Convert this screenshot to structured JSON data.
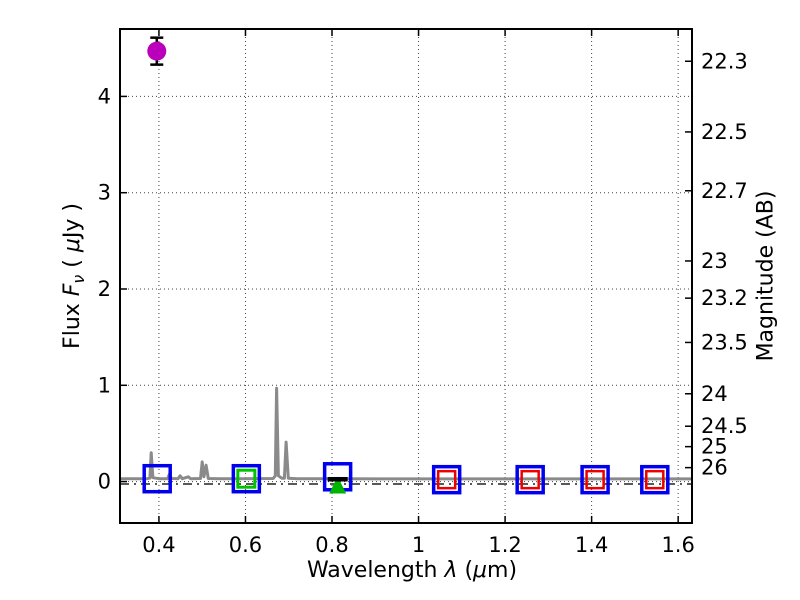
{
  "chart_data": {
    "type": "scatter",
    "description": "SED plot: gray model spectrum near zero flux with emission lines, photometric points (magenta detection at top-left, open blue squares with nested green/red model squares, green upper-limit triangle with black cap), dual y-axes (flux left, AB magnitude right)",
    "xlabel": {
      "word": "Wavelength ",
      "symbol": "λ ",
      "open": "(",
      "mu": "μ",
      "close": "m)"
    },
    "ylabel_left": {
      "word": "Flux ",
      "symbol": "F",
      "sub": "ν",
      "open": " ( ",
      "mu": "μ",
      "close": "Jy )"
    },
    "ylabel_right": {
      "text": "Magnitude (AB)"
    },
    "xlim": [
      0.31,
      1.632
    ],
    "ylim": [
      -0.43,
      4.7
    ],
    "grid": true,
    "background": "#ffffff",
    "spine_color": "#000000",
    "grid_color": "#444444",
    "zero_line": {
      "style": "dash-dot",
      "color": "#222222",
      "flux": -0.025
    },
    "x_ticks": [
      {
        "label": "0.4",
        "value": 0.4
      },
      {
        "label": "0.6",
        "value": 0.6
      },
      {
        "label": "0.8",
        "value": 0.8
      },
      {
        "label": "1",
        "value": 1.0
      },
      {
        "label": "1.2",
        "value": 1.2
      },
      {
        "label": "1.4",
        "value": 1.4
      },
      {
        "label": "1.6",
        "value": 1.6
      }
    ],
    "y_ticks_left": [
      {
        "label": "0",
        "value": 0
      },
      {
        "label": "1",
        "value": 1
      },
      {
        "label": "2",
        "value": 2
      },
      {
        "label": "3",
        "value": 3
      },
      {
        "label": "4",
        "value": 4
      }
    ],
    "y_ticks_right": [
      {
        "label": "22.3",
        "flux": 4.365
      },
      {
        "label": "22.5",
        "flux": 3.631
      },
      {
        "label": "22.7",
        "flux": 3.02
      },
      {
        "label": "23",
        "flux": 2.291
      },
      {
        "label": "23.2",
        "flux": 1.905
      },
      {
        "label": "23.5",
        "flux": 1.445
      },
      {
        "label": "24",
        "flux": 0.912
      },
      {
        "label": "24.5",
        "flux": 0.575
      },
      {
        "label": "25",
        "flux": 0.363
      },
      {
        "label": "26",
        "flux": 0.145
      }
    ],
    "spectrum": {
      "name": "model-spectrum",
      "color": "#8a8a8a",
      "width": 3,
      "points": [
        [
          0.31,
          0.03
        ],
        [
          0.372,
          0.03
        ],
        [
          0.379,
          0.035
        ],
        [
          0.382,
          0.3
        ],
        [
          0.386,
          0.04
        ],
        [
          0.4,
          0.03
        ],
        [
          0.42,
          0.03
        ],
        [
          0.424,
          0.075
        ],
        [
          0.429,
          0.032
        ],
        [
          0.444,
          0.03
        ],
        [
          0.449,
          0.06
        ],
        [
          0.454,
          0.03
        ],
        [
          0.468,
          0.05
        ],
        [
          0.473,
          0.03
        ],
        [
          0.496,
          0.032
        ],
        [
          0.5,
          0.205
        ],
        [
          0.504,
          0.05
        ],
        [
          0.509,
          0.17
        ],
        [
          0.514,
          0.032
        ],
        [
          0.54,
          0.03
        ],
        [
          0.6,
          0.03
        ],
        [
          0.664,
          0.032
        ],
        [
          0.669,
          0.06
        ],
        [
          0.672,
          0.97
        ],
        [
          0.676,
          0.06
        ],
        [
          0.684,
          0.035
        ],
        [
          0.69,
          0.035
        ],
        [
          0.694,
          0.41
        ],
        [
          0.699,
          0.035
        ],
        [
          0.72,
          0.03
        ],
        [
          0.8,
          0.03
        ],
        [
          1.0,
          0.028
        ],
        [
          1.2,
          0.028
        ],
        [
          1.4,
          0.028
        ],
        [
          1.632,
          0.028
        ]
      ]
    },
    "photometry": [
      {
        "name": "observed-flux-squares",
        "marker": "square",
        "color": "#0000ee",
        "size": 26,
        "stroke": 3.5,
        "points": [
          {
            "x": 0.396,
            "y": 0.03
          },
          {
            "x": 0.602,
            "y": 0.03
          },
          {
            "x": 0.813,
            "y": 0.05
          },
          {
            "x": 1.065,
            "y": 0.02
          },
          {
            "x": 1.258,
            "y": 0.02
          },
          {
            "x": 1.408,
            "y": 0.02
          },
          {
            "x": 1.546,
            "y": 0.02
          }
        ]
      },
      {
        "name": "model-green-square",
        "marker": "square",
        "color": "#00c400",
        "size": 17,
        "stroke": 3,
        "points": [
          {
            "x": 0.602,
            "y": 0.03
          }
        ]
      },
      {
        "name": "model-red-squares",
        "marker": "square",
        "color": "#ee0000",
        "size": 17,
        "stroke": 2.5,
        "points": [
          {
            "x": 1.065,
            "y": 0.02
          },
          {
            "x": 1.258,
            "y": 0.02
          },
          {
            "x": 1.408,
            "y": 0.02
          },
          {
            "x": 1.546,
            "y": 0.02
          }
        ]
      },
      {
        "name": "upper-limit-triangle",
        "marker": "triangle-up",
        "color": "#00b400",
        "size": 17,
        "points": [
          {
            "x": 0.813,
            "y": -0.035
          }
        ]
      },
      {
        "name": "upper-limit-cap",
        "marker": "hbar",
        "color": "#000000",
        "size": 20,
        "points": [
          {
            "x": 0.813,
            "y": 0.025
          }
        ]
      },
      {
        "name": "detected-flux-point",
        "marker": "circle",
        "color": "#bb00bb",
        "size": 19,
        "err_color": "#000000",
        "points": [
          {
            "x": 0.395,
            "y": 4.47,
            "yerr": 0.14
          }
        ]
      }
    ]
  }
}
